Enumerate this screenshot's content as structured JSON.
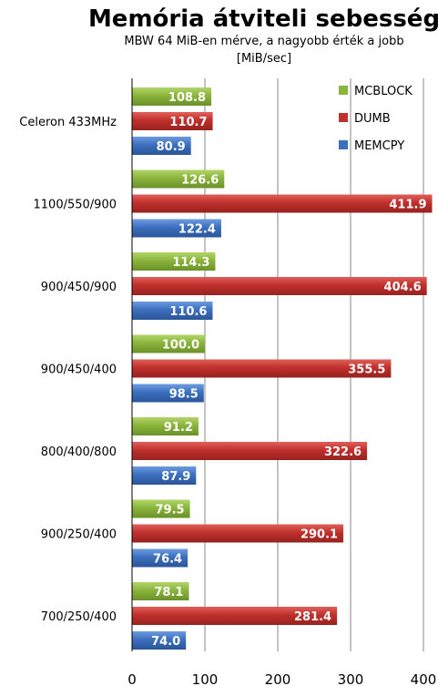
{
  "chart_data": {
    "type": "bar",
    "orientation": "horizontal",
    "title": "Memória átviteli sebesség",
    "subtitle": "MBW 64 MiB-en mérve, a nagyobb érték a jobb",
    "unit_label": "[MiB/sec]",
    "categories": [
      "Celeron 433MHz",
      "1100/550/900",
      "900/450/900",
      "900/450/400",
      "800/400/800",
      "900/250/400",
      "700/250/400"
    ],
    "series": [
      {
        "name": "MCBLOCK",
        "color": "#8ab43c",
        "values": [
          108.8,
          126.6,
          114.3,
          100.0,
          91.2,
          79.5,
          78.1
        ]
      },
      {
        "name": "DUMB",
        "color": "#c0302c",
        "values": [
          110.7,
          411.9,
          404.6,
          355.5,
          322.6,
          290.1,
          281.4
        ]
      },
      {
        "name": "MEMCPY",
        "color": "#3c6fbe",
        "values": [
          80.9,
          122.4,
          110.6,
          98.5,
          87.9,
          76.4,
          74.0
        ]
      }
    ],
    "xlim": [
      0,
      420
    ],
    "xticks": [
      0,
      100,
      200,
      300,
      400
    ],
    "xtick_labels": [
      "0",
      "100",
      "200",
      "300",
      "400"
    ],
    "grid": "vertical",
    "legend_position": "top-right"
  }
}
